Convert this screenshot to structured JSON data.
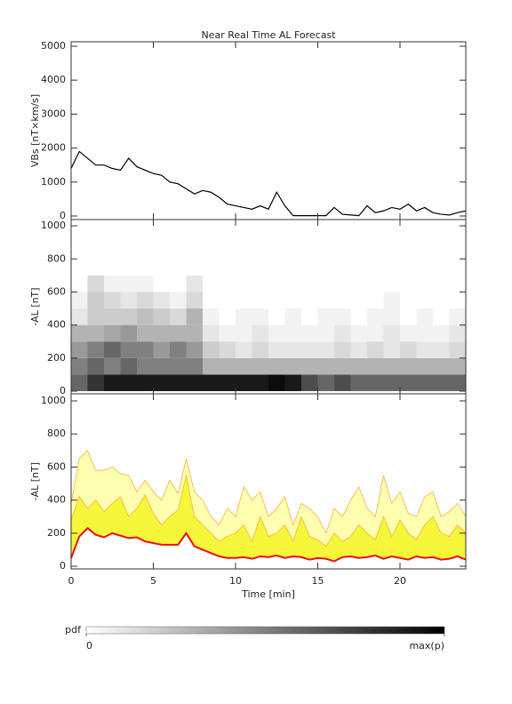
{
  "chart_data": [
    {
      "type": "line",
      "title": "Near Real Time AL Forecast",
      "ylabel": "VBs [nT×km/s]",
      "x": [
        0,
        0.5,
        1,
        1.5,
        2,
        2.5,
        3,
        3.5,
        4,
        4.5,
        5,
        5.5,
        6,
        6.5,
        7,
        7.5,
        8,
        8.5,
        9,
        9.5,
        10,
        10.5,
        11,
        11.5,
        12,
        12.5,
        13,
        13.5,
        14,
        14.5,
        15,
        15.5,
        16,
        16.5,
        17,
        17.5,
        18,
        18.5,
        19,
        19.5,
        20,
        20.5,
        21,
        21.5,
        22,
        22.5,
        23,
        23.5,
        24
      ],
      "values": [
        1400,
        1900,
        1700,
        1500,
        1500,
        1400,
        1350,
        1700,
        1450,
        1350,
        1250,
        1200,
        1000,
        950,
        800,
        650,
        750,
        700,
        550,
        350,
        300,
        250,
        200,
        300,
        200,
        700,
        300,
        10,
        10,
        10,
        10,
        10,
        250,
        50,
        30,
        10,
        300,
        100,
        150,
        250,
        200,
        350,
        150,
        250,
        100,
        50,
        30,
        100,
        150
      ],
      "color": "#000000",
      "xlim": [
        0,
        24
      ],
      "xticks": [
        0,
        5,
        10,
        15,
        20
      ],
      "ylim": [
        -105,
        5130
      ],
      "yticks": [
        0,
        1000,
        2000,
        3000,
        4000,
        5000
      ]
    },
    {
      "type": "heatmap",
      "ylabel": "-AL [nT]",
      "xbins": [
        0,
        1,
        2,
        3,
        4,
        5,
        6,
        7,
        8,
        9,
        10,
        11,
        12,
        13,
        14,
        15,
        16,
        17,
        18,
        19,
        20,
        21,
        22,
        23,
        24
      ],
      "ybins": [
        0,
        100,
        200,
        300,
        400,
        500,
        600,
        700
      ],
      "z": [
        [
          0.6,
          0.8,
          0.9,
          0.9,
          0.9,
          0.9,
          0.9,
          0.9,
          0.9,
          0.9,
          0.9,
          0.9,
          0.95,
          0.9,
          0.7,
          0.6,
          0.7,
          0.6,
          0.6,
          0.6,
          0.6,
          0.6,
          0.6,
          0.6
        ],
        [
          0.5,
          0.6,
          0.5,
          0.6,
          0.5,
          0.5,
          0.5,
          0.5,
          0.3,
          0.3,
          0.3,
          0.3,
          0.3,
          0.3,
          0.3,
          0.3,
          0.3,
          0.3,
          0.3,
          0.3,
          0.3,
          0.3,
          0.3,
          0.3
        ],
        [
          0.4,
          0.5,
          0.6,
          0.5,
          0.5,
          0.4,
          0.5,
          0.4,
          0.2,
          0.15,
          0.1,
          0.15,
          0.1,
          0.1,
          0.1,
          0.1,
          0.15,
          0.1,
          0.15,
          0.1,
          0.15,
          0.1,
          0.1,
          0.15
        ],
        [
          0.3,
          0.3,
          0.35,
          0.4,
          0.3,
          0.3,
          0.3,
          0.3,
          0.1,
          0.05,
          0.05,
          0.1,
          0.05,
          0.05,
          0.05,
          0.05,
          0.1,
          0.05,
          0.05,
          0.1,
          0.05,
          0.05,
          0.05,
          0.1
        ],
        [
          0.1,
          0.2,
          0.2,
          0.2,
          0.25,
          0.2,
          0.15,
          0.3,
          0.05,
          0,
          0.05,
          0.05,
          0,
          0.05,
          0,
          0.05,
          0.05,
          0,
          0.05,
          0.05,
          0,
          0.05,
          0,
          0.05
        ],
        [
          0.05,
          0.2,
          0.15,
          0.1,
          0.15,
          0.1,
          0.05,
          0.15,
          0,
          0,
          0,
          0,
          0,
          0,
          0,
          0,
          0,
          0,
          0,
          0.05,
          0,
          0,
          0,
          0
        ],
        [
          0,
          0.15,
          0.05,
          0.05,
          0.05,
          0,
          0,
          0.1,
          0,
          0,
          0,
          0,
          0,
          0,
          0,
          0,
          0,
          0,
          0,
          0,
          0,
          0,
          0,
          0
        ]
      ],
      "xlim": [
        0,
        24
      ],
      "xticks": [
        0,
        5,
        10,
        15,
        20
      ],
      "ylim": [
        -16,
        1038
      ],
      "yticks": [
        0,
        200,
        400,
        600,
        800,
        1000
      ],
      "colorbar": {
        "label": "pdf",
        "lim": [
          0,
          1
        ],
        "ticks": [
          0,
          {
            "value": 1,
            "label": "max(p)"
          }
        ]
      }
    },
    {
      "type": "band",
      "ylabel": "-AL [nT]",
      "xlabel": "Time [min]",
      "x": [
        0,
        0.5,
        1,
        1.5,
        2,
        2.5,
        3,
        3.5,
        4,
        4.5,
        5,
        5.5,
        6,
        6.5,
        7,
        7.5,
        8,
        8.5,
        9,
        9.5,
        10,
        10.5,
        11,
        11.5,
        12,
        12.5,
        13,
        13.5,
        14,
        14.5,
        15,
        15.5,
        16,
        16.5,
        17,
        17.5,
        18,
        18.5,
        19,
        19.5,
        20,
        20.5,
        21,
        21.5,
        22,
        22.5,
        23,
        23.5,
        24
      ],
      "series": [
        {
          "color": "#f5b041",
          "fill": "#ffffb0",
          "values": [
            380,
            650,
            700,
            580,
            580,
            600,
            560,
            550,
            450,
            520,
            450,
            400,
            520,
            440,
            650,
            450,
            400,
            300,
            250,
            350,
            300,
            480,
            400,
            450,
            300,
            350,
            420,
            250,
            380,
            350,
            300,
            200,
            350,
            300,
            400,
            480,
            350,
            300,
            550,
            380,
            450,
            320,
            300,
            420,
            450,
            300,
            330,
            380,
            300
          ]
        },
        {
          "color": "#f5b041",
          "fill": "#f5f53a",
          "values": [
            280,
            420,
            350,
            400,
            330,
            380,
            420,
            300,
            350,
            430,
            320,
            250,
            300,
            340,
            550,
            300,
            250,
            200,
            150,
            180,
            200,
            250,
            150,
            300,
            180,
            200,
            250,
            150,
            300,
            180,
            160,
            120,
            200,
            150,
            180,
            250,
            200,
            160,
            300,
            180,
            280,
            200,
            160,
            250,
            300,
            200,
            180,
            250,
            200
          ]
        },
        {
          "color": "#ee1111",
          "fill": "#ffffff",
          "values": [
            50,
            180,
            230,
            190,
            175,
            200,
            185,
            170,
            175,
            150,
            140,
            130,
            130,
            130,
            200,
            120,
            100,
            80,
            60,
            50,
            50,
            55,
            45,
            60,
            55,
            65,
            50,
            60,
            55,
            40,
            50,
            45,
            30,
            55,
            60,
            50,
            55,
            65,
            45,
            60,
            50,
            40,
            60,
            50,
            55,
            40,
            45,
            60,
            40
          ]
        }
      ],
      "xlim": [
        0,
        24
      ],
      "xticks": [
        0,
        5,
        10,
        15,
        20
      ],
      "ylim": [
        -16,
        1043
      ],
      "yticks": [
        0,
        200,
        400,
        600,
        800,
        1000
      ]
    }
  ]
}
